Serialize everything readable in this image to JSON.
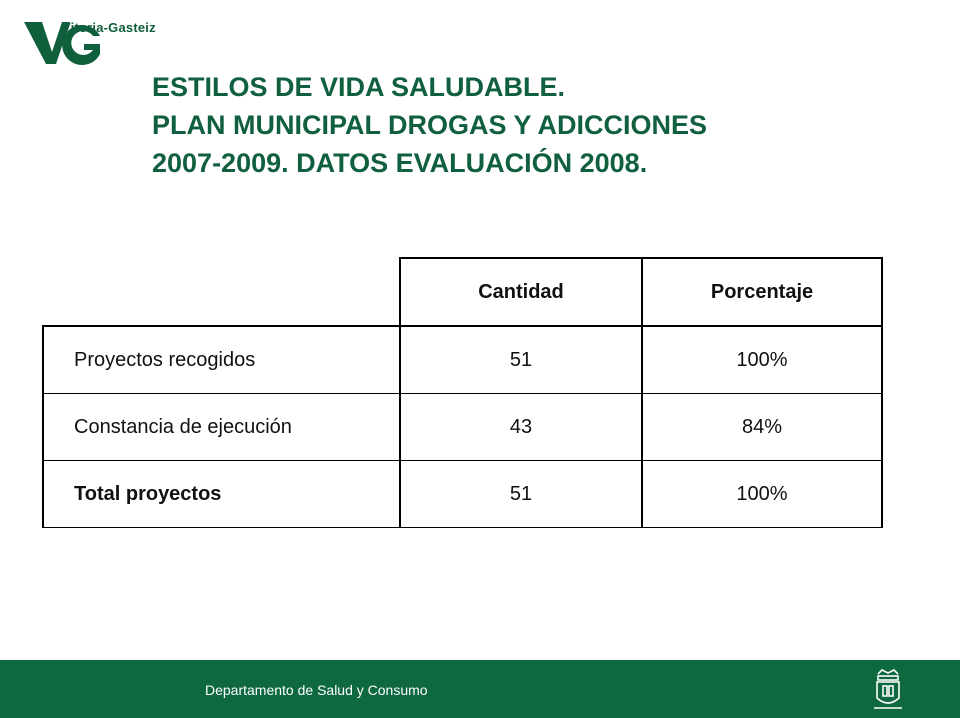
{
  "brand": {
    "logo_text": "Vitoria-Gasteiz",
    "logo_mark": "VG",
    "green": "#0e6840"
  },
  "title": {
    "line1": "ESTILOS DE VIDA SALUDABLE.",
    "line2": "PLAN MUNICIPAL DROGAS Y ADICCIONES",
    "line3": "2007-2009. DATOS EVALUACIÓN 2008."
  },
  "table": {
    "headers": [
      "",
      "Cantidad",
      "Porcentaje"
    ],
    "rows": [
      {
        "label": "Proyectos recogidos",
        "cantidad": "51",
        "porcentaje": "100%"
      },
      {
        "label": "Constancia de ejecución",
        "cantidad": "43",
        "porcentaje": "84%"
      },
      {
        "label": "Total proyectos",
        "cantidad": "51",
        "porcentaje": "100%"
      }
    ]
  },
  "footer": {
    "department": "Departamento de Salud y Consumo",
    "crest_icon": "coat-of-arms-icon"
  }
}
